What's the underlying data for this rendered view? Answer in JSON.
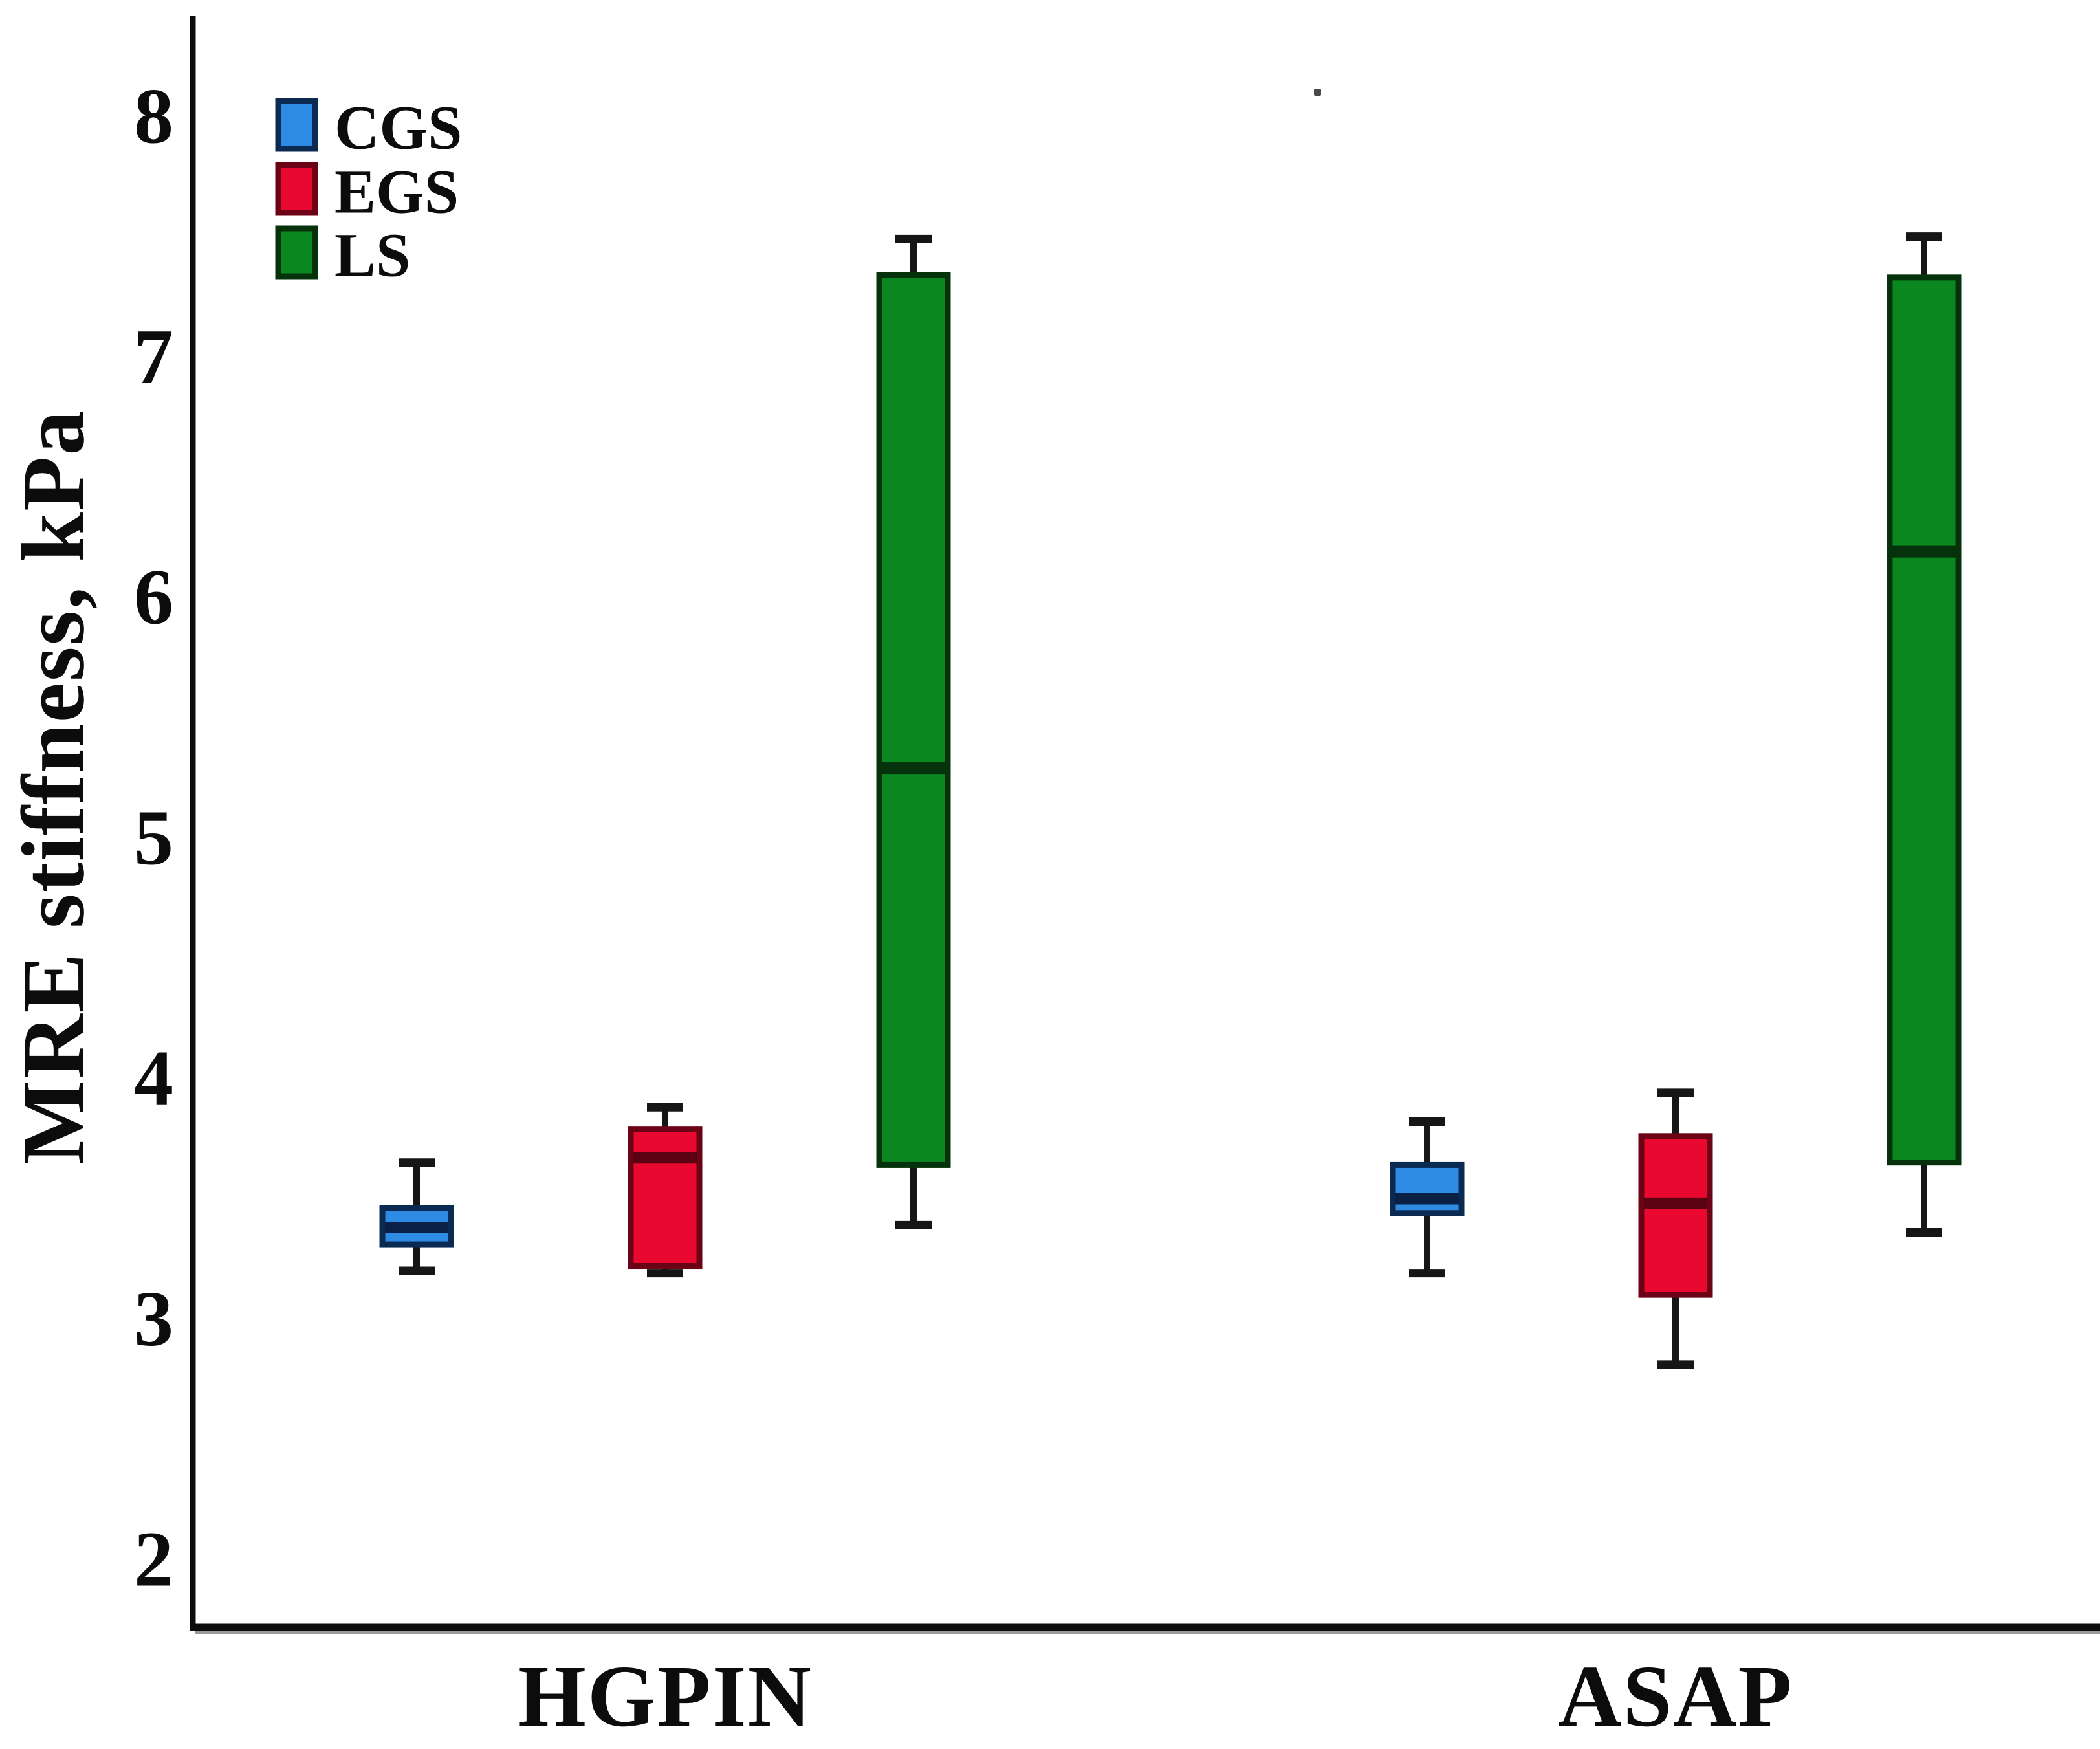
{
  "figure": {
    "background": "#ffffff"
  },
  "y_axis": {
    "label": "MRE stiffness, kPa",
    "ticks": [
      "8",
      "7",
      "6",
      "5",
      "4",
      "3",
      "2"
    ]
  },
  "x_axis": {
    "categories": [
      "HGPIN",
      "ASAP"
    ]
  },
  "legend": {
    "position": "top-left",
    "items": [
      "CGS",
      "EGS",
      "LS"
    ]
  },
  "chart_data": {
    "type": "boxplot",
    "title": "",
    "xlabel": "",
    "ylabel": "MRE stiffness, kPa",
    "ylim": [
      1.7,
      8.4
    ],
    "yticks": [
      2,
      3,
      4,
      5,
      6,
      7,
      8
    ],
    "grid": false,
    "legend_position": "top-left",
    "whisker_color": "#161616",
    "categories": [
      "HGPIN",
      "ASAP"
    ],
    "series": [
      {
        "name": "CGS",
        "fill": "#2E8BE4",
        "border": "#0B2A52",
        "median_color": "#0A2145",
        "boxes": [
          {
            "category": "HGPIN",
            "min": 3.2,
            "q1": 3.31,
            "median": 3.38,
            "q3": 3.46,
            "max": 3.65
          },
          {
            "category": "ASAP",
            "min": 3.19,
            "q1": 3.44,
            "median": 3.5,
            "q3": 3.64,
            "max": 3.82
          }
        ]
      },
      {
        "name": "EGS",
        "fill": "#E9082F",
        "border": "#6B0216",
        "median_color": "#5A0212",
        "boxes": [
          {
            "category": "HGPIN",
            "min": 3.19,
            "q1": 3.22,
            "median": 3.67,
            "q3": 3.79,
            "max": 3.88
          },
          {
            "category": "ASAP",
            "min": 2.81,
            "q1": 3.1,
            "median": 3.48,
            "q3": 3.76,
            "max": 3.94
          }
        ]
      },
      {
        "name": "LS",
        "fill": "#0B871F",
        "border": "#05320B",
        "median_color": "#05320B",
        "boxes": [
          {
            "category": "HGPIN",
            "min": 3.39,
            "q1": 3.64,
            "median": 5.29,
            "q3": 7.34,
            "max": 7.49
          },
          {
            "category": "ASAP",
            "min": 3.36,
            "q1": 3.65,
            "median": 6.19,
            "q3": 7.33,
            "max": 7.5
          }
        ]
      }
    ]
  }
}
